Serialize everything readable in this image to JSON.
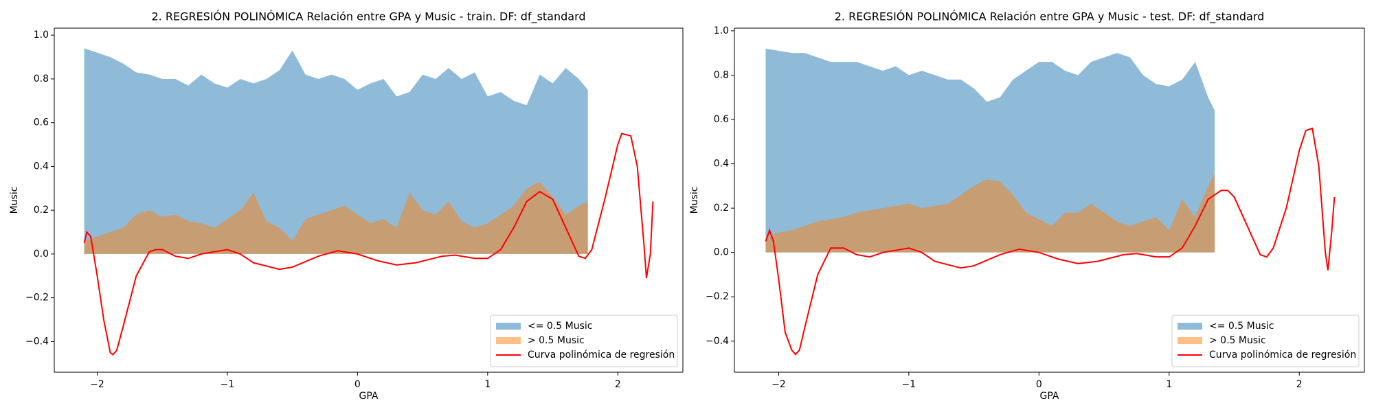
{
  "chart_data": [
    {
      "type": "line",
      "title": "2. REGRESIÓN POLINÓMICA Relación entre GPA y Music - train. DF: df_standard",
      "xlabel": "GPA",
      "ylabel": "Music",
      "legend": "lower right",
      "xlim": [
        -2.33,
        2.5
      ],
      "ylim": [
        -0.54,
        1.032
      ],
      "xticks": [
        {
          "value": -2,
          "label": "−2"
        },
        {
          "value": -1,
          "label": "−1"
        },
        0,
        1,
        2
      ],
      "yticks": [
        {
          "value": -0.4,
          "label": "−0.4"
        },
        {
          "value": -0.2,
          "label": "−0.2"
        },
        {
          "value": 0,
          "label": "0.0"
        },
        {
          "value": 0.2,
          "label": "0.2"
        },
        {
          "value": 0.4,
          "label": "0.4"
        },
        {
          "value": 0.6,
          "label": "0.6"
        },
        {
          "value": 0.8,
          "label": "0.8"
        },
        {
          "value": 1,
          "label": "1.0"
        }
      ],
      "series": [
        {
          "name": "<= 0.5 Music",
          "type": "area",
          "color": "#1f77b4",
          "alpha": 0.5,
          "x": [
            -2.1,
            -2.0,
            -1.9,
            -1.8,
            -1.7,
            -1.6,
            -1.5,
            -1.4,
            -1.3,
            -1.2,
            -1.1,
            -1.0,
            -0.9,
            -0.8,
            -0.7,
            -0.6,
            -0.5,
            -0.4,
            -0.3,
            -0.2,
            -0.1,
            0.0,
            0.1,
            0.2,
            0.3,
            0.4,
            0.5,
            0.6,
            0.7,
            0.8,
            0.9,
            1.0,
            1.1,
            1.2,
            1.3,
            1.4,
            1.5,
            1.6,
            1.7,
            1.77
          ],
          "values": [
            0.94,
            0.92,
            0.9,
            0.87,
            0.83,
            0.82,
            0.8,
            0.8,
            0.77,
            0.82,
            0.78,
            0.76,
            0.8,
            0.78,
            0.8,
            0.84,
            0.93,
            0.82,
            0.8,
            0.82,
            0.8,
            0.75,
            0.78,
            0.8,
            0.72,
            0.74,
            0.82,
            0.8,
            0.85,
            0.8,
            0.83,
            0.72,
            0.74,
            0.7,
            0.68,
            0.82,
            0.78,
            0.85,
            0.8,
            0.75
          ]
        },
        {
          "name": "> 0.5 Music",
          "type": "area",
          "color": "#ff7f0e",
          "alpha": 0.5,
          "x": [
            -2.1,
            -2.0,
            -1.9,
            -1.8,
            -1.7,
            -1.6,
            -1.5,
            -1.4,
            -1.3,
            -1.2,
            -1.1,
            -1.0,
            -0.9,
            -0.8,
            -0.7,
            -0.6,
            -0.5,
            -0.4,
            -0.3,
            -0.2,
            -0.1,
            0.0,
            0.1,
            0.2,
            0.3,
            0.4,
            0.5,
            0.6,
            0.7,
            0.8,
            0.9,
            1.0,
            1.1,
            1.2,
            1.3,
            1.4,
            1.5,
            1.6,
            1.7,
            1.77
          ],
          "values": [
            0.06,
            0.08,
            0.1,
            0.12,
            0.18,
            0.2,
            0.17,
            0.18,
            0.15,
            0.14,
            0.12,
            0.16,
            0.2,
            0.28,
            0.15,
            0.12,
            0.06,
            0.16,
            0.18,
            0.2,
            0.22,
            0.18,
            0.14,
            0.16,
            0.12,
            0.28,
            0.2,
            0.18,
            0.24,
            0.15,
            0.12,
            0.14,
            0.18,
            0.22,
            0.3,
            0.33,
            0.26,
            0.18,
            0.22,
            0.24
          ]
        },
        {
          "name": "Curva polinómica de regresión",
          "type": "line",
          "color": "#ff0000",
          "x": [
            -2.1,
            -2.08,
            -2.05,
            -2.0,
            -1.95,
            -1.9,
            -1.88,
            -1.85,
            -1.8,
            -1.7,
            -1.6,
            -1.55,
            -1.5,
            -1.4,
            -1.3,
            -1.2,
            -1.0,
            -0.9,
            -0.8,
            -0.6,
            -0.5,
            -0.3,
            -0.15,
            0.0,
            0.15,
            0.3,
            0.45,
            0.65,
            0.75,
            0.9,
            1.0,
            1.1,
            1.2,
            1.3,
            1.4,
            1.5,
            1.6,
            1.7,
            1.75,
            1.8,
            1.9,
            2.0,
            2.03,
            2.1,
            2.15,
            2.2,
            2.22,
            2.25,
            2.27
          ],
          "values": [
            0.05,
            0.1,
            0.08,
            -0.1,
            -0.3,
            -0.45,
            -0.46,
            -0.44,
            -0.33,
            -0.1,
            0.01,
            0.02,
            0.02,
            -0.01,
            -0.02,
            0.0,
            0.02,
            0.0,
            -0.04,
            -0.07,
            -0.06,
            -0.01,
            0.015,
            0.0,
            -0.03,
            -0.05,
            -0.04,
            -0.01,
            -0.005,
            -0.02,
            -0.02,
            0.02,
            0.12,
            0.24,
            0.285,
            0.25,
            0.12,
            -0.01,
            -0.02,
            0.02,
            0.25,
            0.5,
            0.55,
            0.54,
            0.4,
            0.05,
            -0.11,
            0.0,
            0.24
          ]
        }
      ]
    },
    {
      "type": "line",
      "title": "2. REGRESIÓN POLINÓMICA Relación entre GPA y Music - test. DF: df_standard",
      "xlabel": "GPA",
      "ylabel": "Music",
      "legend": "lower right",
      "xlim": [
        -2.34,
        2.5
      ],
      "ylim": [
        -0.54,
        1.012
      ],
      "xticks": [
        {
          "value": -2,
          "label": "−2"
        },
        {
          "value": -1,
          "label": "−1"
        },
        0,
        1,
        2
      ],
      "yticks": [
        {
          "value": -0.4,
          "label": "−0.4"
        },
        {
          "value": -0.2,
          "label": "−0.2"
        },
        {
          "value": 0,
          "label": "0.0"
        },
        {
          "value": 0.2,
          "label": "0.2"
        },
        {
          "value": 0.4,
          "label": "0.4"
        },
        {
          "value": 0.6,
          "label": "0.6"
        },
        {
          "value": 0.8,
          "label": "0.8"
        },
        {
          "value": 1,
          "label": "1.0"
        }
      ],
      "series": [
        {
          "name": "<= 0.5 Music",
          "type": "area",
          "color": "#1f77b4",
          "alpha": 0.5,
          "x": [
            -2.1,
            -2.0,
            -1.9,
            -1.8,
            -1.7,
            -1.6,
            -1.5,
            -1.4,
            -1.3,
            -1.2,
            -1.1,
            -1.0,
            -0.9,
            -0.8,
            -0.7,
            -0.6,
            -0.5,
            -0.4,
            -0.3,
            -0.2,
            -0.1,
            0.0,
            0.1,
            0.2,
            0.3,
            0.4,
            0.5,
            0.6,
            0.7,
            0.8,
            0.9,
            1.0,
            1.1,
            1.2,
            1.3,
            1.35
          ],
          "values": [
            0.92,
            0.91,
            0.9,
            0.9,
            0.88,
            0.86,
            0.86,
            0.86,
            0.84,
            0.82,
            0.84,
            0.8,
            0.82,
            0.8,
            0.78,
            0.78,
            0.74,
            0.68,
            0.7,
            0.78,
            0.82,
            0.86,
            0.86,
            0.82,
            0.8,
            0.86,
            0.88,
            0.9,
            0.88,
            0.8,
            0.76,
            0.75,
            0.78,
            0.86,
            0.7,
            0.64
          ]
        },
        {
          "name": "> 0.5 Music",
          "type": "area",
          "color": "#ff7f0e",
          "alpha": 0.5,
          "x": [
            -2.1,
            -2.0,
            -1.9,
            -1.8,
            -1.7,
            -1.6,
            -1.5,
            -1.4,
            -1.3,
            -1.2,
            -1.1,
            -1.0,
            -0.9,
            -0.8,
            -0.7,
            -0.6,
            -0.5,
            -0.4,
            -0.3,
            -0.2,
            -0.1,
            0.0,
            0.1,
            0.2,
            0.3,
            0.4,
            0.5,
            0.6,
            0.7,
            0.8,
            0.9,
            1.0,
            1.1,
            1.2,
            1.3,
            1.35
          ],
          "values": [
            0.07,
            0.09,
            0.1,
            0.12,
            0.14,
            0.15,
            0.16,
            0.18,
            0.19,
            0.2,
            0.21,
            0.22,
            0.2,
            0.21,
            0.22,
            0.26,
            0.3,
            0.33,
            0.32,
            0.26,
            0.18,
            0.15,
            0.12,
            0.18,
            0.18,
            0.22,
            0.18,
            0.14,
            0.12,
            0.14,
            0.16,
            0.1,
            0.24,
            0.16,
            0.3,
            0.36
          ]
        },
        {
          "name": "Curva polinómica de regresión",
          "type": "line",
          "color": "#ff0000",
          "x": [
            -2.1,
            -2.07,
            -2.04,
            -2.0,
            -1.95,
            -1.9,
            -1.87,
            -1.84,
            -1.8,
            -1.7,
            -1.6,
            -1.55,
            -1.5,
            -1.4,
            -1.3,
            -1.2,
            -1.0,
            -0.9,
            -0.8,
            -0.6,
            -0.5,
            -0.3,
            -0.15,
            0.0,
            0.15,
            0.3,
            0.45,
            0.65,
            0.75,
            0.9,
            1.0,
            1.1,
            1.2,
            1.3,
            1.4,
            1.45,
            1.5,
            1.6,
            1.7,
            1.75,
            1.8,
            1.9,
            2.0,
            2.05,
            2.1,
            2.15,
            2.2,
            2.22,
            2.25,
            2.27
          ],
          "values": [
            0.05,
            0.1,
            0.05,
            -0.12,
            -0.36,
            -0.44,
            -0.46,
            -0.44,
            -0.34,
            -0.1,
            0.02,
            0.02,
            0.02,
            -0.01,
            -0.02,
            0.0,
            0.02,
            0.0,
            -0.04,
            -0.07,
            -0.06,
            -0.01,
            0.015,
            0.0,
            -0.03,
            -0.05,
            -0.04,
            -0.01,
            -0.005,
            -0.02,
            -0.02,
            0.02,
            0.12,
            0.24,
            0.28,
            0.28,
            0.25,
            0.12,
            -0.01,
            -0.02,
            0.02,
            0.2,
            0.46,
            0.55,
            0.56,
            0.39,
            0.0,
            -0.08,
            0.1,
            0.25
          ]
        }
      ]
    }
  ]
}
